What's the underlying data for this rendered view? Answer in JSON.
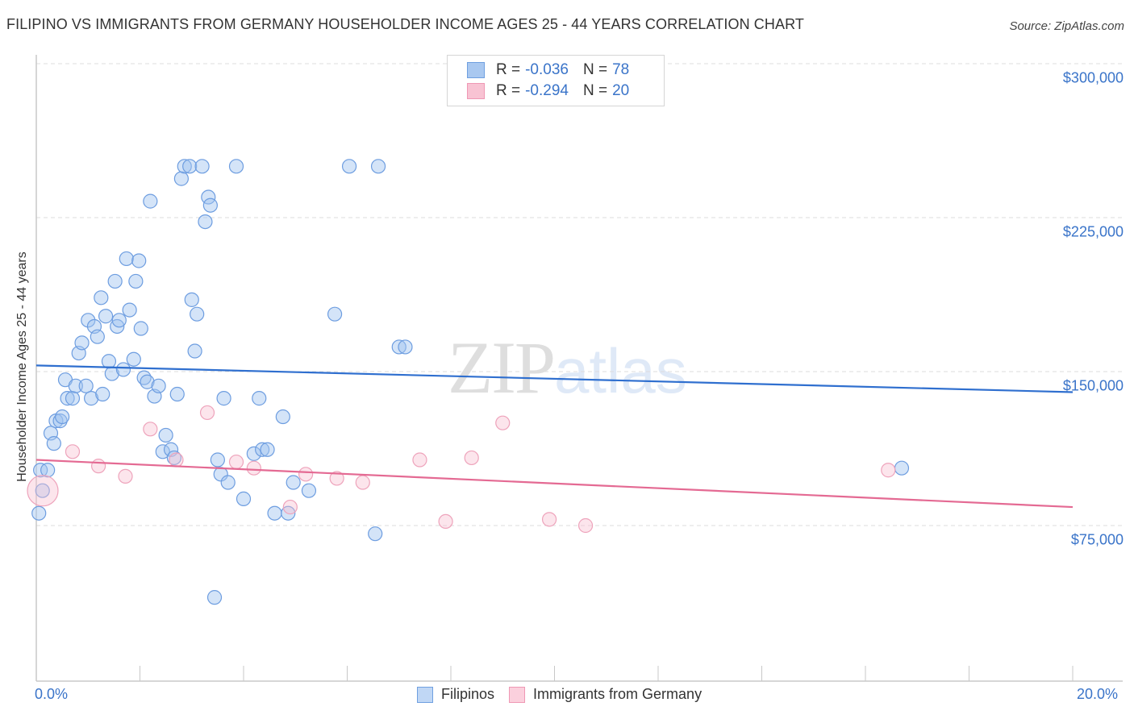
{
  "header": {
    "title": "FILIPINO VS IMMIGRANTS FROM GERMANY HOUSEHOLDER INCOME AGES 25 - 44 YEARS CORRELATION CHART",
    "source": "Source: ZipAtlas.com"
  },
  "watermark": {
    "zip": "ZIP",
    "atlas": "atlas"
  },
  "legend": {
    "rows": [
      {
        "r_label": "R = ",
        "r_value": "-0.036",
        "n_label": "N = ",
        "n_value": "78",
        "color": "#a9c8f0",
        "border": "#6f9fe0"
      },
      {
        "r_label": "R = ",
        "r_value": "-0.294",
        "n_label": "N = ",
        "n_value": "20",
        "color": "#f8c3d3",
        "border": "#ef98b4"
      }
    ]
  },
  "bottom_legend": {
    "items": [
      {
        "label": "Filipinos",
        "color": "#c0d7f5",
        "border": "#6f9fe0"
      },
      {
        "label": "Immigrants from Germany",
        "color": "#fbd0dd",
        "border": "#ef98b4"
      }
    ]
  },
  "axes": {
    "ylabel": "Householder Income Ages 25 - 44 years",
    "y_ticks": [
      "$300,000",
      "$225,000",
      "$150,000",
      "$75,000"
    ],
    "x_ticks": [
      "0.0%",
      "20.0%"
    ]
  },
  "colors": {
    "blue_fill": "rgba(160,196,240,0.45)",
    "blue_stroke": "#6d9de0",
    "blue_line": "#2f6fcf",
    "pink_fill": "rgba(248,190,208,0.40)",
    "pink_stroke": "#eea3bb",
    "pink_line": "#e46a93",
    "grid": "#dcdcdc",
    "axis": "#c8c8c8",
    "tick_text": "#3a74c9"
  },
  "chart_data": {
    "type": "scatter",
    "title": "FILIPINO VS IMMIGRANTS FROM GERMANY HOUSEHOLDER INCOME AGES 25 - 44 YEARS CORRELATION CHART",
    "xlabel": "",
    "ylabel": "Householder Income Ages 25 - 44 years",
    "xlim": [
      0,
      20
    ],
    "ylim": [
      0,
      307000
    ],
    "x_unit": "%",
    "y_ticks": [
      75000,
      150000,
      225000,
      300000
    ],
    "grid": true,
    "legend_position": "top-center / bottom",
    "series": [
      {
        "name": "Filipinos",
        "R": -0.036,
        "N": 78,
        "trend": {
          "x": [
            0,
            20
          ],
          "y": [
            153000,
            140000
          ]
        },
        "points": [
          [
            0.08,
            102000
          ],
          [
            0.12,
            92000
          ],
          [
            0.05,
            81000
          ],
          [
            0.22,
            102000
          ],
          [
            0.28,
            120000
          ],
          [
            0.34,
            115000
          ],
          [
            0.38,
            126000
          ],
          [
            0.46,
            126000
          ],
          [
            0.5,
            128000
          ],
          [
            0.56,
            146000
          ],
          [
            0.6,
            137000
          ],
          [
            0.7,
            137000
          ],
          [
            0.76,
            143000
          ],
          [
            0.82,
            159000
          ],
          [
            0.88,
            164000
          ],
          [
            0.96,
            143000
          ],
          [
            1.0,
            175000
          ],
          [
            1.06,
            137000
          ],
          [
            1.12,
            172000
          ],
          [
            1.18,
            167000
          ],
          [
            1.25,
            186000
          ],
          [
            1.28,
            139000
          ],
          [
            1.34,
            177000
          ],
          [
            1.4,
            155000
          ],
          [
            1.46,
            149000
          ],
          [
            1.52,
            194000
          ],
          [
            1.56,
            172000
          ],
          [
            1.6,
            175000
          ],
          [
            1.68,
            151000
          ],
          [
            1.74,
            205000
          ],
          [
            1.8,
            180000
          ],
          [
            1.88,
            156000
          ],
          [
            1.92,
            194000
          ],
          [
            1.98,
            204000
          ],
          [
            2.02,
            171000
          ],
          [
            2.08,
            147000
          ],
          [
            2.14,
            145000
          ],
          [
            2.2,
            233000
          ],
          [
            2.28,
            138000
          ],
          [
            2.36,
            143000
          ],
          [
            2.44,
            111000
          ],
          [
            2.5,
            119000
          ],
          [
            2.6,
            112000
          ],
          [
            2.66,
            108000
          ],
          [
            2.72,
            139000
          ],
          [
            2.8,
            244000
          ],
          [
            2.86,
            250000
          ],
          [
            2.96,
            250000
          ],
          [
            3.0,
            185000
          ],
          [
            3.06,
            160000
          ],
          [
            3.1,
            178000
          ],
          [
            3.2,
            250000
          ],
          [
            3.26,
            223000
          ],
          [
            3.32,
            235000
          ],
          [
            3.36,
            231000
          ],
          [
            3.44,
            40000
          ],
          [
            3.5,
            107000
          ],
          [
            3.56,
            100000
          ],
          [
            3.62,
            137000
          ],
          [
            3.7,
            96000
          ],
          [
            3.86,
            250000
          ],
          [
            4.0,
            88000
          ],
          [
            4.2,
            110000
          ],
          [
            4.3,
            137000
          ],
          [
            4.36,
            112000
          ],
          [
            4.46,
            112000
          ],
          [
            4.6,
            81000
          ],
          [
            4.76,
            128000
          ],
          [
            4.86,
            81000
          ],
          [
            4.96,
            96000
          ],
          [
            5.26,
            92000
          ],
          [
            5.76,
            178000
          ],
          [
            6.04,
            250000
          ],
          [
            6.54,
            71000
          ],
          [
            6.6,
            250000
          ],
          [
            7.0,
            162000
          ],
          [
            7.12,
            162000
          ],
          [
            16.7,
            103000
          ]
        ]
      },
      {
        "name": "Immigrants from Germany",
        "R": -0.294,
        "N": 20,
        "trend": {
          "x": [
            0,
            20
          ],
          "y": [
            107000,
            84000
          ]
        },
        "points": [
          [
            0.05,
            92000
          ],
          [
            0.7,
            111000
          ],
          [
            1.2,
            104000
          ],
          [
            1.72,
            99000
          ],
          [
            2.2,
            122000
          ],
          [
            2.7,
            107000
          ],
          [
            3.3,
            130000
          ],
          [
            3.86,
            106000
          ],
          [
            4.2,
            103000
          ],
          [
            4.9,
            84000
          ],
          [
            5.2,
            100000
          ],
          [
            5.8,
            98000
          ],
          [
            6.3,
            96000
          ],
          [
            7.4,
            107000
          ],
          [
            7.9,
            77000
          ],
          [
            8.4,
            108000
          ],
          [
            9.0,
            125000
          ],
          [
            9.9,
            78000
          ],
          [
            10.6,
            75000
          ],
          [
            16.44,
            102000
          ]
        ]
      }
    ]
  }
}
